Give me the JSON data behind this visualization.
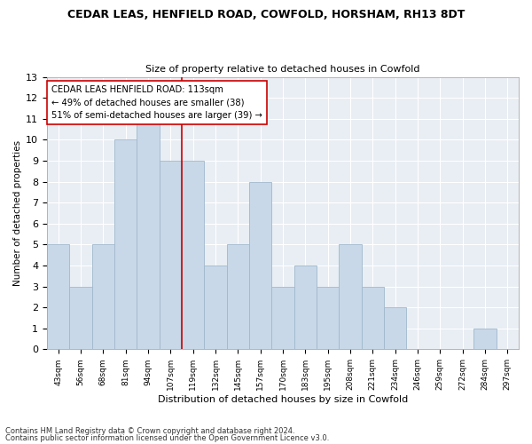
{
  "title1": "CEDAR LEAS, HENFIELD ROAD, COWFOLD, HORSHAM, RH13 8DT",
  "title2": "Size of property relative to detached houses in Cowfold",
  "xlabel": "Distribution of detached houses by size in Cowfold",
  "ylabel": "Number of detached properties",
  "categories": [
    "43sqm",
    "56sqm",
    "68sqm",
    "81sqm",
    "94sqm",
    "107sqm",
    "119sqm",
    "132sqm",
    "145sqm",
    "157sqm",
    "170sqm",
    "183sqm",
    "195sqm",
    "208sqm",
    "221sqm",
    "234sqm",
    "246sqm",
    "259sqm",
    "272sqm",
    "284sqm",
    "297sqm"
  ],
  "values": [
    5,
    3,
    5,
    10,
    11,
    9,
    9,
    4,
    5,
    8,
    3,
    4,
    3,
    5,
    3,
    2,
    0,
    0,
    0,
    1,
    0
  ],
  "bar_color": "#c8d8e8",
  "bar_edge_color": "#a0b8cc",
  "highlight_line_index": 5,
  "highlight_line_color": "#cc0000",
  "annotation_text": "CEDAR LEAS HENFIELD ROAD: 113sqm\n← 49% of detached houses are smaller (38)\n51% of semi-detached houses are larger (39) →",
  "annotation_box_edge_color": "#cc0000",
  "ylim": [
    0,
    13
  ],
  "yticks": [
    0,
    1,
    2,
    3,
    4,
    5,
    6,
    7,
    8,
    9,
    10,
    11,
    12,
    13
  ],
  "footer1": "Contains HM Land Registry data © Crown copyright and database right 2024.",
  "footer2": "Contains public sector information licensed under the Open Government Licence v3.0.",
  "bg_color": "#ffffff",
  "plot_bg_color": "#e8eef4",
  "grid_color": "#ffffff"
}
